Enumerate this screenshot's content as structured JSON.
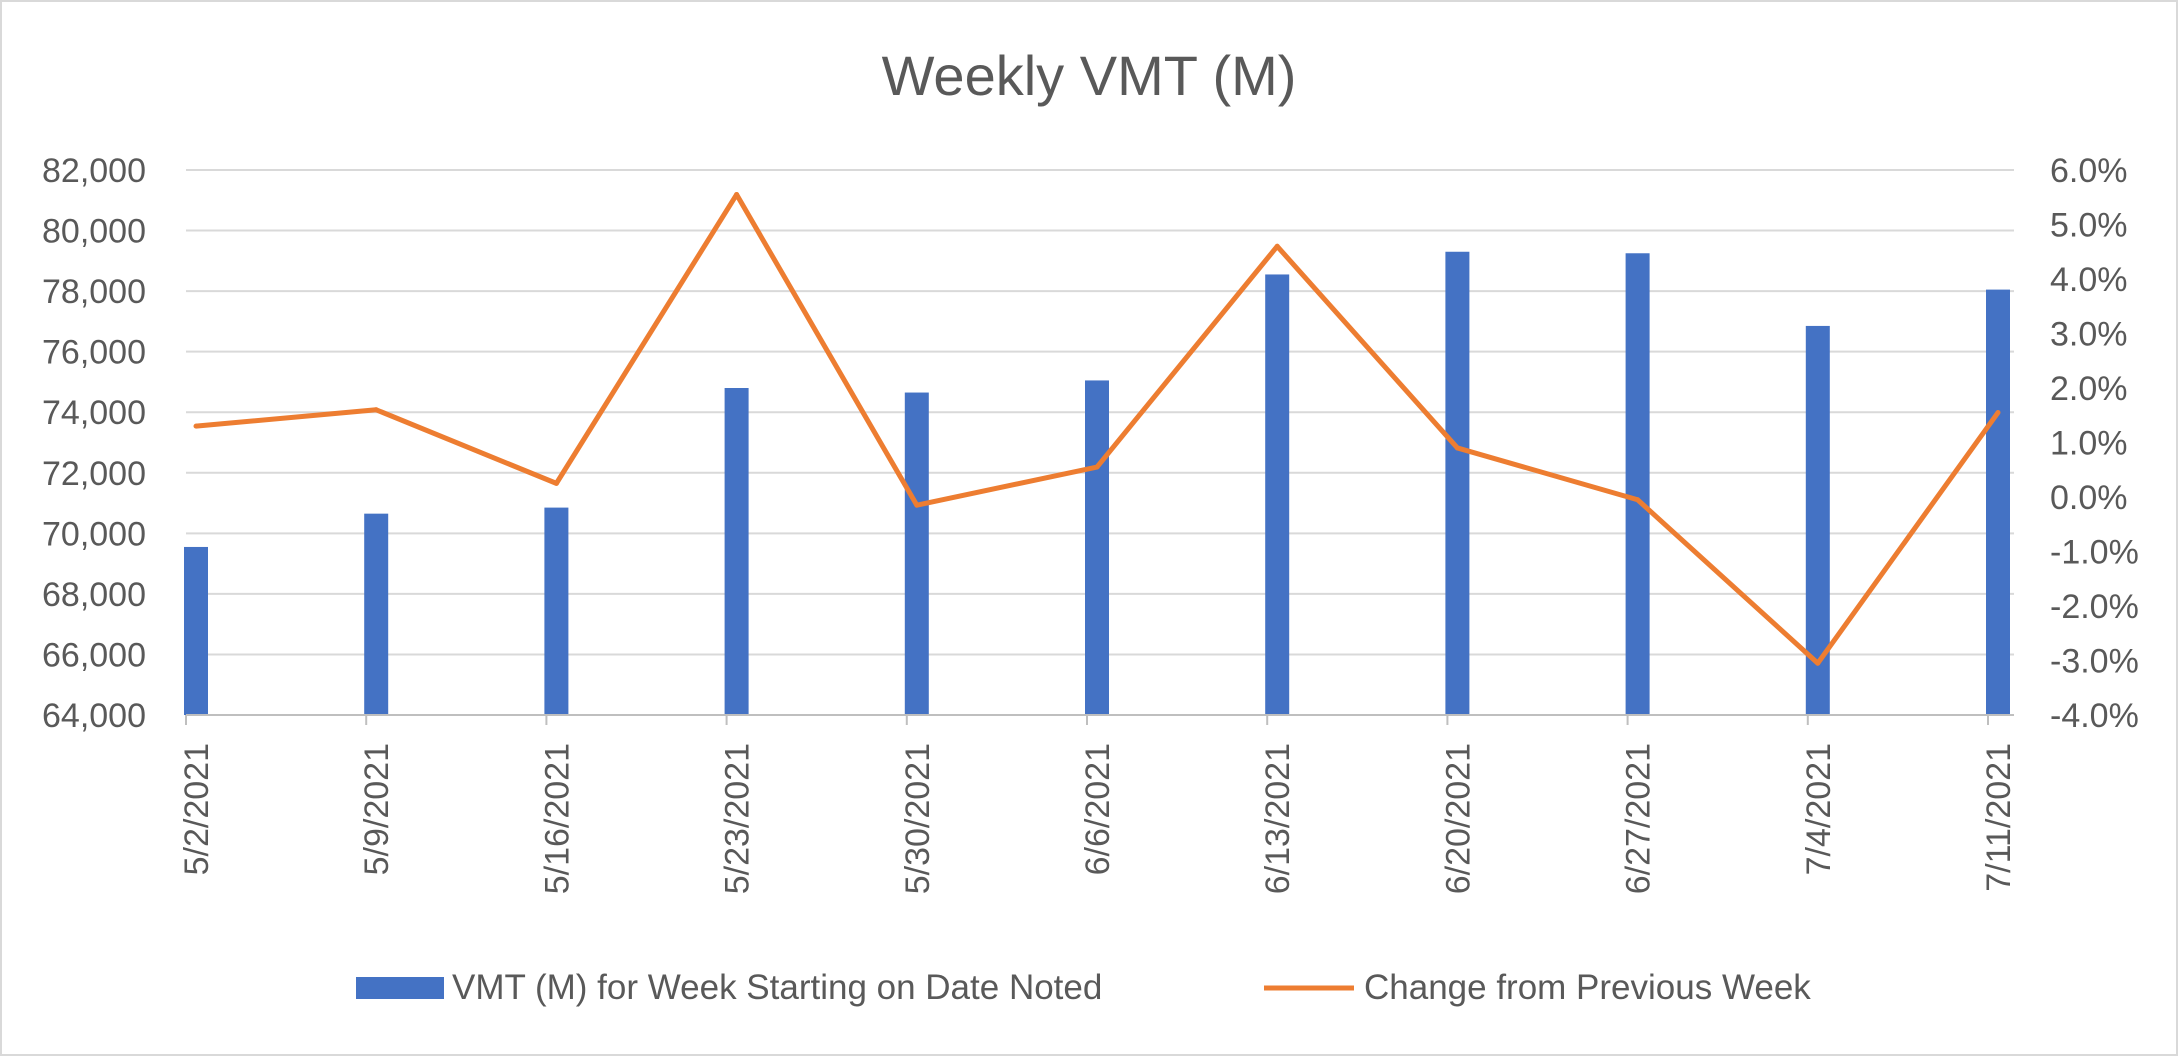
{
  "chart_data": {
    "type": "bar",
    "title": "Weekly VMT (M)",
    "categories": [
      "5/2/2021",
      "5/9/2021",
      "5/16/2021",
      "5/23/2021",
      "5/30/2021",
      "6/6/2021",
      "6/13/2021",
      "6/20/2021",
      "6/27/2021",
      "7/4/2021",
      "7/11/2021"
    ],
    "series": [
      {
        "name": "VMT (M) for Week Starting on Date Noted",
        "type": "bar",
        "axis": "left",
        "color": "#4472C4",
        "values": [
          69550,
          70650,
          70850,
          74800,
          74650,
          75050,
          78550,
          79300,
          79250,
          76850,
          78050
        ]
      },
      {
        "name": "Change from Previous Week",
        "type": "line",
        "axis": "right",
        "color": "#ED7D31",
        "values": [
          1.3,
          1.6,
          0.25,
          5.55,
          -0.15,
          0.55,
          4.6,
          0.9,
          -0.05,
          -3.05,
          1.55
        ]
      }
    ],
    "y_left": {
      "min": 64000,
      "max": 82000,
      "ticks": [
        "64,000",
        "66,000",
        "68,000",
        "70,000",
        "72,000",
        "74,000",
        "76,000",
        "78,000",
        "80,000",
        "82,000"
      ]
    },
    "y_right": {
      "min": -4.0,
      "max": 6.0,
      "unit": "%",
      "ticks": [
        "-4.0%",
        "-3.0%",
        "-2.0%",
        "-1.0%",
        "0.0%",
        "1.0%",
        "2.0%",
        "3.0%",
        "4.0%",
        "5.0%",
        "6.0%"
      ]
    },
    "grid": true,
    "legend_position": "bottom",
    "gridline_color": "#d9d9d9",
    "text_color": "#595959"
  }
}
